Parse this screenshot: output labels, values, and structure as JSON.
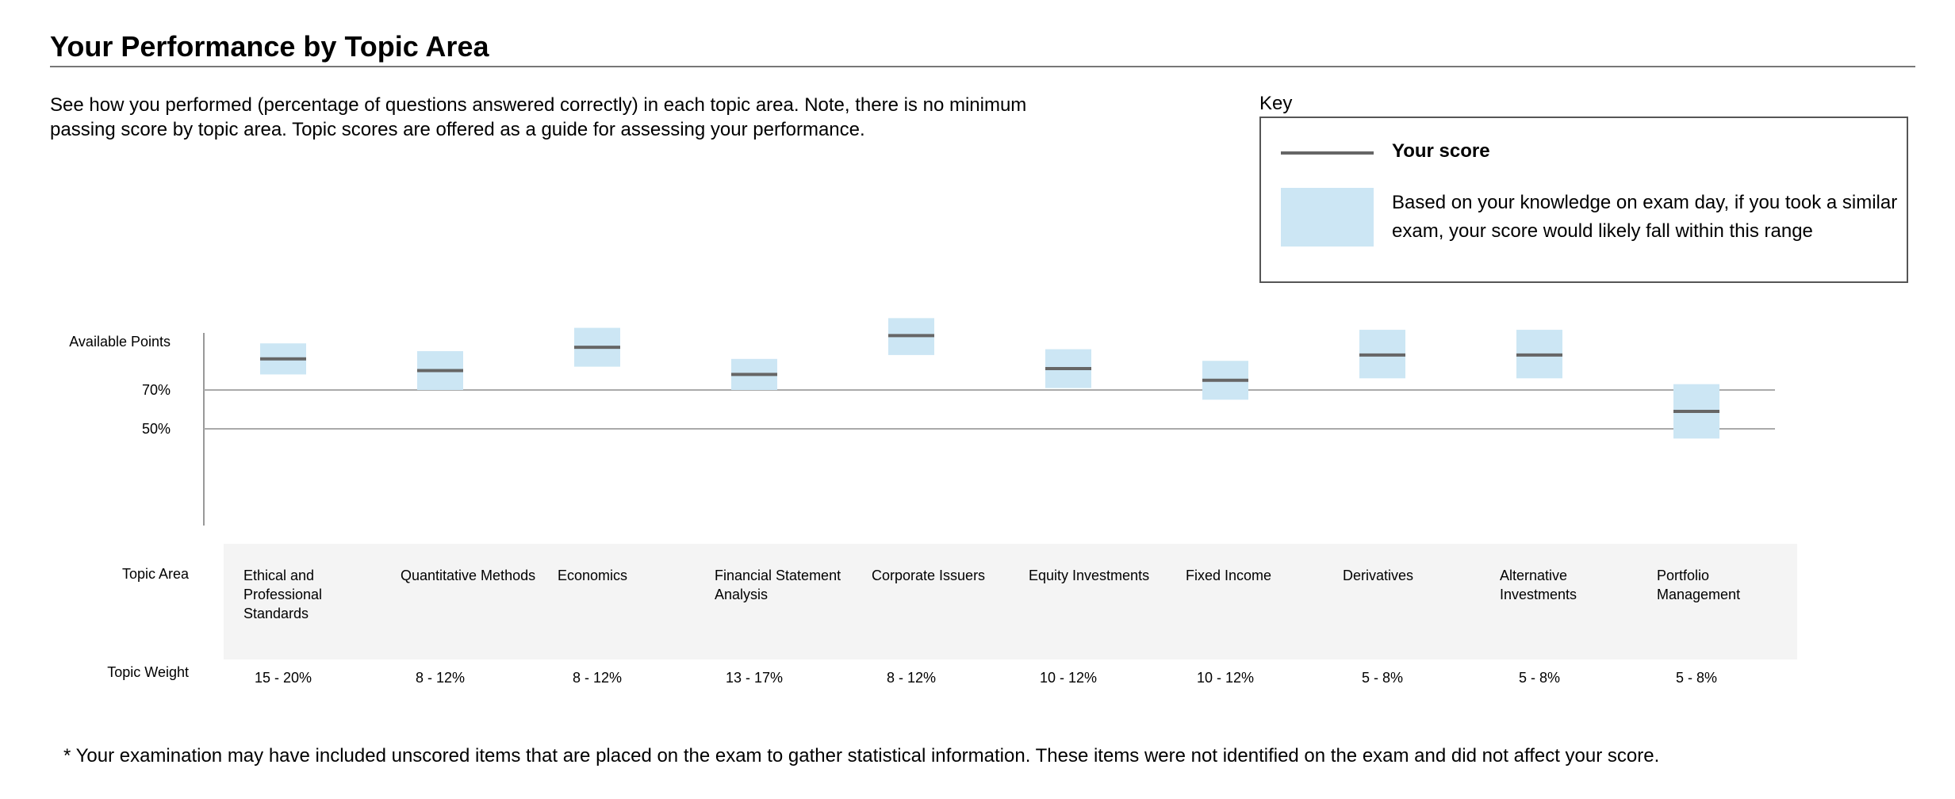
{
  "page": {
    "title": "Your Performance by Topic Area",
    "intro": "See how you performed (percentage of questions answered correctly) in each topic area. Note, there is no minimum passing score by topic area. Topic scores are offered as a guide for assessing your performance.",
    "footnote": "* Your examination may have included unscored items that are placed on the exam to gather statistical information. These items were not identified on the exam and did not affect your score."
  },
  "key": {
    "label": "Key",
    "score_label": "Your score",
    "range_label": "Based on your knowledge on exam day, if you took a similar exam, your score would likely fall within this range"
  },
  "colors": {
    "range_fill": "#cce6f4",
    "score_line": "#666666",
    "reference_line": "#aaaaaa"
  },
  "chart_data": {
    "type": "range",
    "y_ticks": [
      {
        "label": "Available Points",
        "value": 100
      },
      {
        "label": "70%",
        "value": 70
      },
      {
        "label": "50%",
        "value": 50
      }
    ],
    "ylim": [
      0,
      100
    ],
    "reference_lines": [
      70,
      50
    ],
    "row_labels": {
      "topic_area": "Topic Area",
      "topic_weight": "Topic Weight"
    },
    "topics": [
      {
        "name": "Ethical and Professional Standards",
        "weight": "15 - 20%",
        "score": 86,
        "range": [
          78,
          94
        ]
      },
      {
        "name": "Quantitative Methods",
        "weight": "8 - 12%",
        "score": 80,
        "range": [
          70,
          90
        ]
      },
      {
        "name": "Economics",
        "weight": "8 - 12%",
        "score": 92,
        "range": [
          82,
          102
        ]
      },
      {
        "name": "Financial Statement Analysis",
        "weight": "13 - 17%",
        "score": 78,
        "range": [
          70,
          86
        ]
      },
      {
        "name": "Corporate Issuers",
        "weight": "8 - 12%",
        "score": 98,
        "range": [
          88,
          107
        ]
      },
      {
        "name": "Equity Investments",
        "weight": "10 - 12%",
        "score": 81,
        "range": [
          71,
          91
        ]
      },
      {
        "name": "Fixed Income",
        "weight": "10 - 12%",
        "score": 75,
        "range": [
          65,
          85
        ]
      },
      {
        "name": "Derivatives",
        "weight": "5 - 8%",
        "score": 88,
        "range": [
          76,
          101
        ]
      },
      {
        "name": "Alternative Investments",
        "weight": "5 - 8%",
        "score": 88,
        "range": [
          76,
          101
        ]
      },
      {
        "name": "Portfolio Management",
        "weight": "5 - 8%",
        "score": 59,
        "range": [
          45,
          73
        ]
      }
    ]
  }
}
